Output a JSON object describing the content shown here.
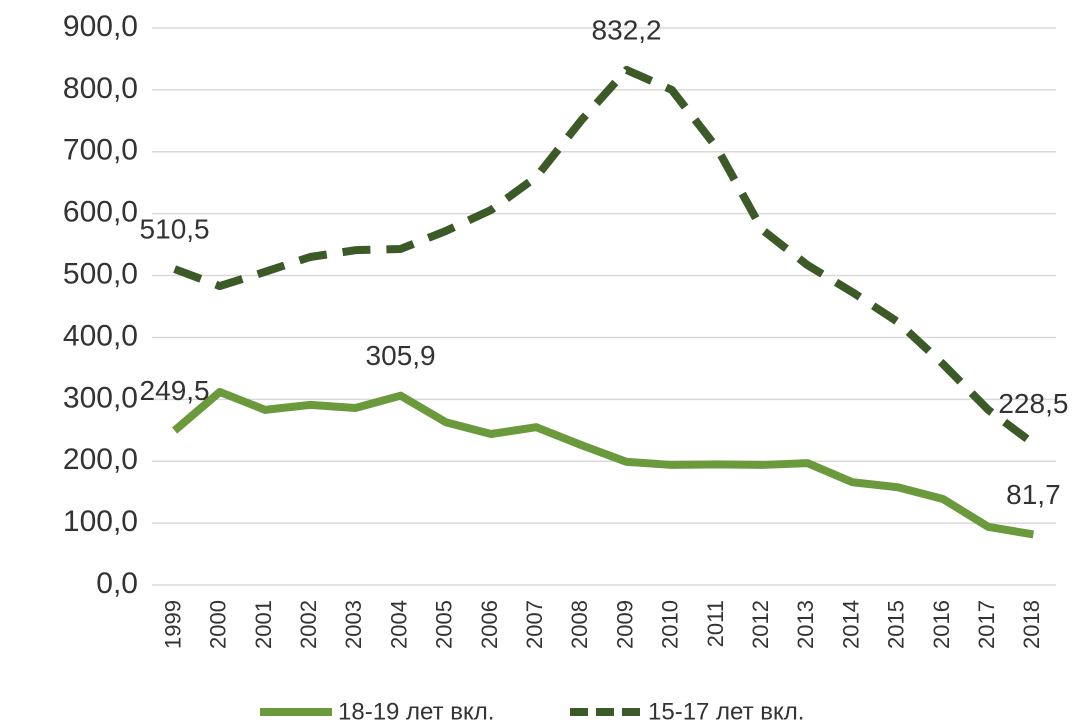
{
  "chart_data": {
    "type": "line",
    "categories": [
      "1999",
      "2000",
      "2001",
      "2002",
      "2003",
      "2004",
      "2005",
      "2006",
      "2007",
      "2008",
      "2009",
      "2010",
      "2011",
      "2012",
      "2013",
      "2014",
      "2015",
      "2016",
      "2017",
      "2018"
    ],
    "series": [
      {
        "name": "18-19 лет вкл.",
        "color": "#6b9a3c",
        "dashed": false,
        "values": [
          249.5,
          312,
          283,
          291,
          286,
          305.9,
          263,
          244,
          255,
          226,
          199,
          194,
          195,
          194,
          197,
          166,
          158,
          139,
          94,
          81.7
        ],
        "value_labels": [
          "249,5",
          null,
          null,
          null,
          null,
          "305,9",
          null,
          null,
          null,
          null,
          null,
          null,
          null,
          null,
          null,
          null,
          null,
          null,
          null,
          "81,7"
        ]
      },
      {
        "name": "15-17 лет вкл.",
        "color": "#3b5a27",
        "dashed": true,
        "values": [
          510.5,
          483,
          506,
          530,
          541,
          543,
          572,
          606,
          659,
          751,
          832.2,
          800,
          706,
          574,
          517,
          473,
          425,
          357,
          283,
          228.5
        ],
        "value_labels": [
          "510,5",
          null,
          null,
          null,
          null,
          null,
          null,
          null,
          null,
          null,
          "832,2",
          null,
          null,
          null,
          null,
          null,
          null,
          null,
          null,
          "228,5"
        ]
      }
    ],
    "ylim": [
      0,
      900
    ],
    "yticks": [
      {
        "value": 0,
        "label": "0,0"
      },
      {
        "value": 100,
        "label": "100,0"
      },
      {
        "value": 200,
        "label": "200,0"
      },
      {
        "value": 300,
        "label": "300,0"
      },
      {
        "value": 400,
        "label": "400,0"
      },
      {
        "value": 500,
        "label": "500,0"
      },
      {
        "value": 600,
        "label": "600,0"
      },
      {
        "value": 700,
        "label": "700,0"
      },
      {
        "value": 800,
        "label": "800,0"
      },
      {
        "value": 900,
        "label": "900,0"
      }
    ],
    "grid": true
  }
}
